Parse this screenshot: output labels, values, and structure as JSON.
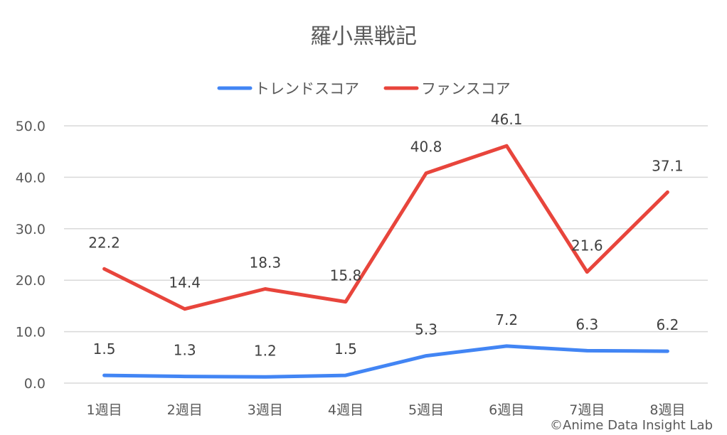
{
  "chart_data": {
    "type": "line",
    "title": "羅小黒戦記",
    "categories": [
      "1週目",
      "2週目",
      "3週目",
      "4週目",
      "5週目",
      "6週目",
      "7週目",
      "8週目"
    ],
    "series": [
      {
        "name": "トレンドスコア",
        "color": "#4285f4",
        "values": [
          1.5,
          1.3,
          1.2,
          1.5,
          5.3,
          7.2,
          6.3,
          6.2
        ]
      },
      {
        "name": "ファンスコア",
        "color": "#e8453c",
        "values": [
          22.2,
          14.4,
          18.3,
          15.8,
          40.8,
          46.1,
          21.6,
          37.1
        ]
      }
    ],
    "ylim": [
      0,
      50
    ],
    "yticks": [
      "0.0",
      "10.0",
      "20.0",
      "30.0",
      "40.0",
      "50.0"
    ],
    "grid": true,
    "legend": "top",
    "data_labels": true
  },
  "credit": "©Anime Data Insight Lab"
}
